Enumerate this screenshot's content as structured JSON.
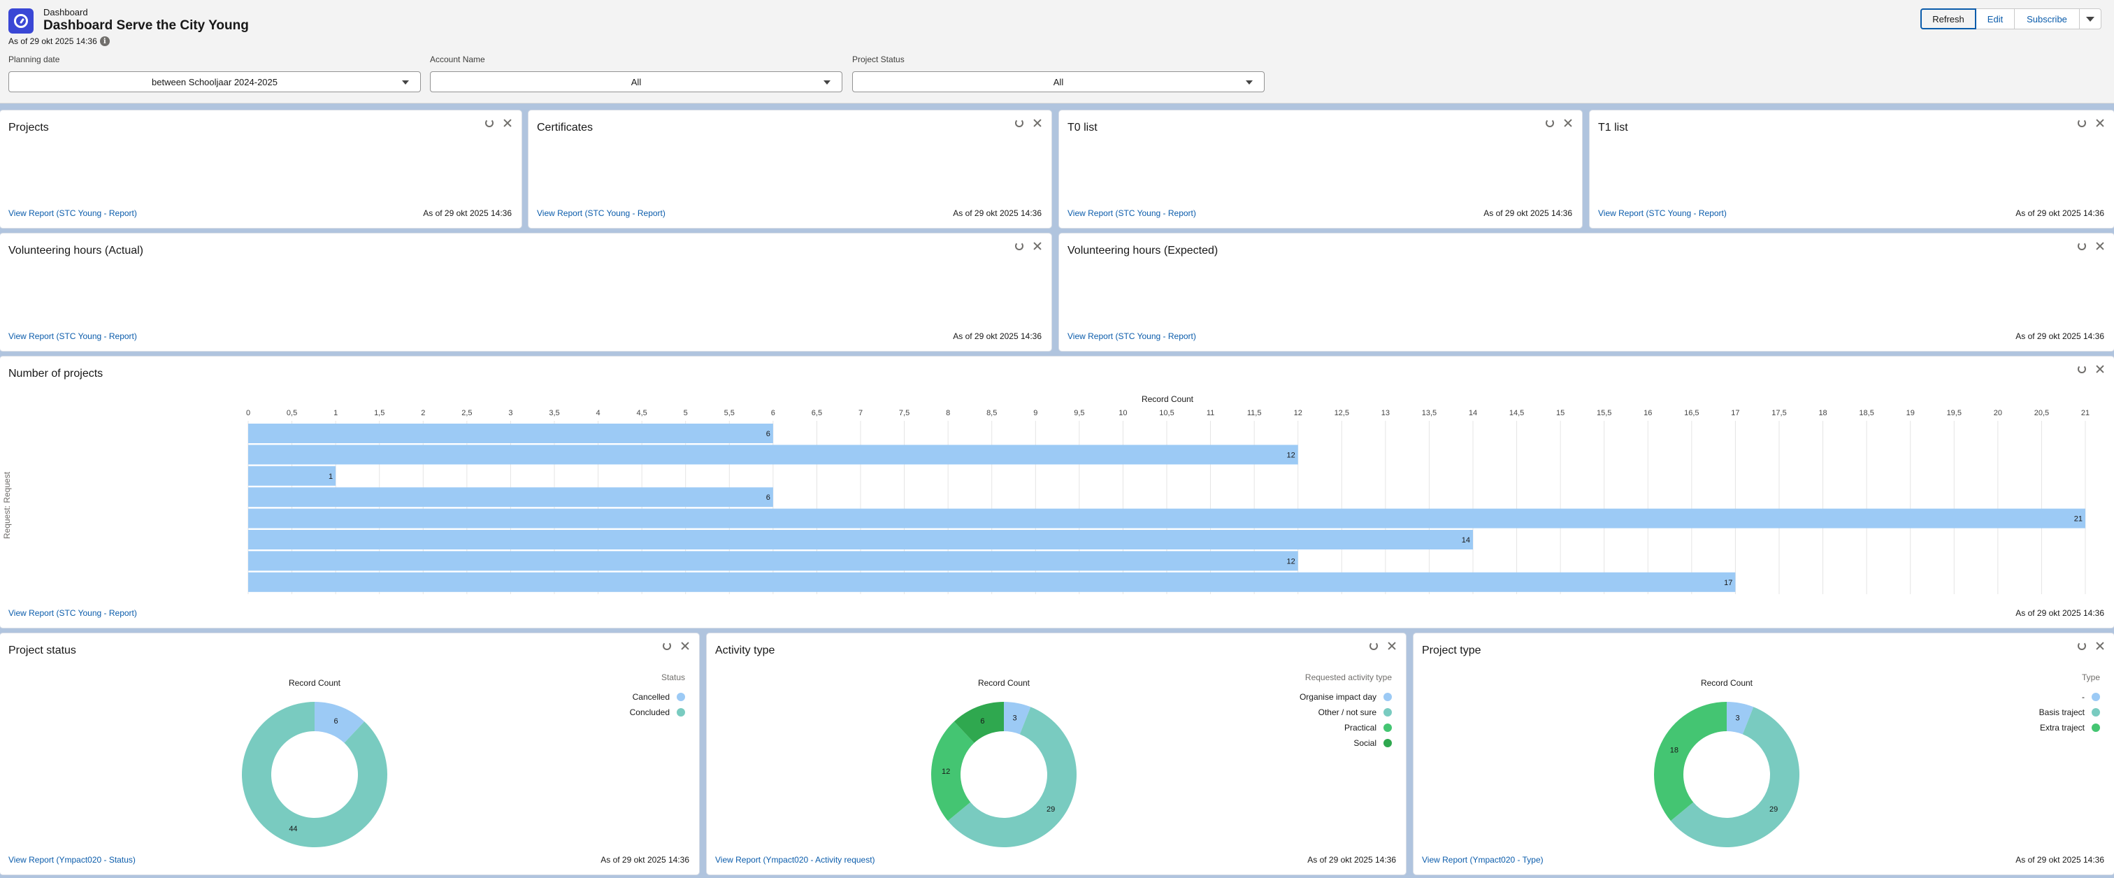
{
  "header": {
    "object_type": "Dashboard",
    "title": "Dashboard Serve the City Young",
    "as_of": "As of 29 okt 2025 14:36",
    "info_icon": "info-icon",
    "buttons": {
      "refresh": "Refresh",
      "edit": "Edit",
      "subscribe": "Subscribe"
    }
  },
  "filters": [
    {
      "label": "Planning date",
      "value": "between Schooljaar 2024-2025"
    },
    {
      "label": "Account Name",
      "value": "All"
    },
    {
      "label": "Project Status",
      "value": "All"
    }
  ],
  "cards": {
    "projects": {
      "title": "Projects",
      "link": "View Report (STC Young - Report)",
      "as_of": "As of 29 okt 2025 14:36"
    },
    "certificates": {
      "title": "Certificates",
      "link": "View Report (STC Young - Report)",
      "as_of": "As of 29 okt 2025 14:36"
    },
    "t0": {
      "title": "T0 list",
      "link": "View Report (STC Young - Report)",
      "as_of": "As of 29 okt 2025 14:36"
    },
    "t1": {
      "title": "T1 list",
      "link": "View Report (STC Young - Report)",
      "as_of": "As of 29 okt 2025 14:36"
    },
    "vol_actual": {
      "title": "Volunteering hours (Actual)",
      "link": "View Report (STC Young - Report)",
      "as_of": "As of 29 okt 2025 14:36"
    },
    "vol_expected": {
      "title": "Volunteering hours (Expected)",
      "link": "View Report (STC Young - Report)",
      "as_of": "As of 29 okt 2025 14:36"
    },
    "num_projects": {
      "title": "Number of projects",
      "link": "View Report (STC Young - Report)",
      "as_of": "As of 29 okt 2025 14:36"
    },
    "project_status": {
      "title": "Project status",
      "link": "View Report (Ympact020 - Status)",
      "as_of": "As of 29 okt 2025 14:36"
    },
    "activity_type": {
      "title": "Activity type",
      "link": "View Report (Ympact020 - Activity request)",
      "as_of": "As of 29 okt 2025 14:36"
    },
    "project_type": {
      "title": "Project type",
      "link": "View Report (Ympact020 - Type)",
      "as_of": "As of 29 okt 2025 14:36"
    }
  },
  "chart_data": [
    {
      "type": "bar",
      "orientation": "horizontal",
      "xlabel": "Record Count",
      "ylabel": "Request: Request",
      "xlim": [
        0,
        21
      ],
      "tick_step": 0.5,
      "tick_labels": [
        "0",
        "0,5",
        "1",
        "1,5",
        "2",
        "2,5",
        "3",
        "3,5",
        "4",
        "4,5",
        "5",
        "5,5",
        "6",
        "6,5",
        "7",
        "7,5",
        "8",
        "8,5",
        "9",
        "9,5",
        "10",
        "10,5",
        "11",
        "11,5",
        "12",
        "12,5",
        "13",
        "13,5",
        "14",
        "14,5",
        "15",
        "15,5",
        "16",
        "16,5",
        "17",
        "17,5",
        "18",
        "18,5",
        "19",
        "19,5",
        "20",
        "20,5",
        "21"
      ],
      "values": [
        6,
        12,
        1,
        6,
        21,
        14,
        12,
        17
      ],
      "color": "#9ccaf5",
      "grid": true
    },
    {
      "type": "pie",
      "variant": "donut",
      "title": "Record Count",
      "legend_title": "Status",
      "legend_position": "top-right",
      "slices": [
        {
          "label": "Cancelled",
          "value": 6,
          "color": "#9ccaf5"
        },
        {
          "label": "Concluded",
          "value": 44,
          "color": "#79cbc0"
        }
      ]
    },
    {
      "type": "pie",
      "variant": "donut",
      "title": "Record Count",
      "legend_title": "Requested activity type",
      "legend_position": "top-right",
      "slices": [
        {
          "label": "Organise impact day",
          "value": 3,
          "color": "#9ccaf5"
        },
        {
          "label": "Other / not sure",
          "value": 29,
          "color": "#79cbc0"
        },
        {
          "label": "Practical",
          "value": 12,
          "color": "#44c572"
        },
        {
          "label": "Social",
          "value": 6,
          "color": "#2fa84f"
        }
      ]
    },
    {
      "type": "pie",
      "variant": "donut",
      "title": "Record Count",
      "legend_title": "Type",
      "legend_position": "top-right",
      "slices": [
        {
          "label": "-",
          "value": 3,
          "color": "#9ccaf5"
        },
        {
          "label": "Basis traject",
          "value": 29,
          "color": "#79cbc0"
        },
        {
          "label": "Extra traject",
          "value": 18,
          "color": "#44c572"
        }
      ]
    }
  ]
}
